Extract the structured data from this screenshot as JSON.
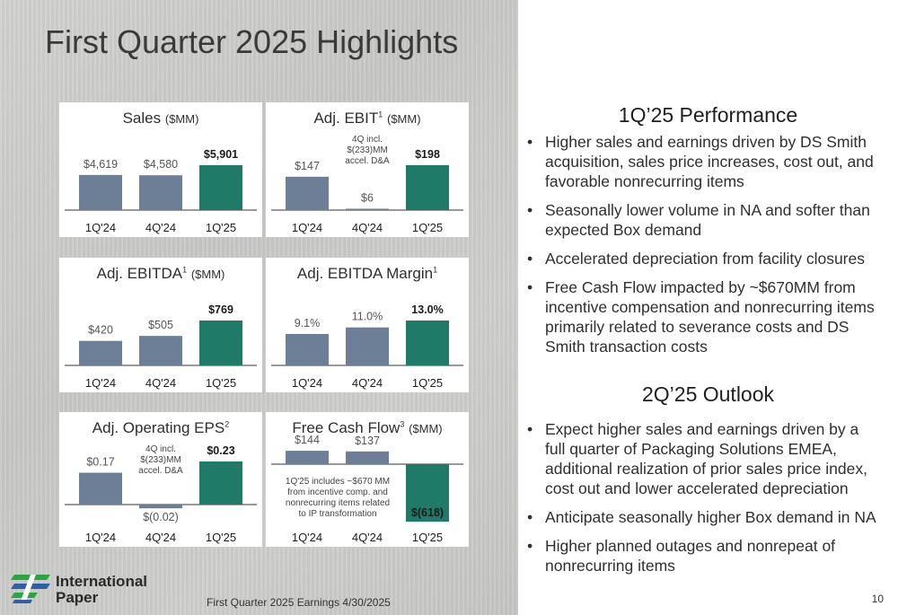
{
  "page": {
    "title": "First Quarter 2025 Highlights",
    "footer": "First Quarter 2025 Earnings 4/30/2025",
    "page_number": "10",
    "logo": {
      "line1": "International",
      "line2": "Paper",
      "icon": "international-paper-logo-icon"
    }
  },
  "colors": {
    "gray_bar": "#6c7f96",
    "teal_bar": "#1f7b67",
    "logo_green": "#2aa63e",
    "logo_blue": "#2f5fa8"
  },
  "panels": [
    {
      "title": "Sales",
      "sup": "",
      "unit": "($MM)"
    },
    {
      "title": "Adj. EBIT",
      "sup": "1",
      "unit": "($MM)"
    },
    {
      "title": "Adj. EBITDA",
      "sup": "1",
      "unit": "($MM)"
    },
    {
      "title": "Adj. EBITDA Margin",
      "sup": "1",
      "unit": ""
    },
    {
      "title": "Adj. Operating EPS",
      "sup": "2",
      "unit": ""
    },
    {
      "title": "Free Cash Flow",
      "sup": "3",
      "unit": "($MM)"
    }
  ],
  "chart_data": [
    {
      "type": "bar",
      "title": "Sales ($MM)",
      "categories": [
        "1Q'24",
        "4Q'24",
        "1Q'25"
      ],
      "values": [
        4619,
        4580,
        5901
      ],
      "labels": [
        "$4,619",
        "$4,580",
        "$5,901"
      ],
      "ylim": [
        0,
        5901
      ]
    },
    {
      "type": "bar",
      "title": "Adj. EBIT1 ($MM)",
      "categories": [
        "1Q'24",
        "4Q'24",
        "1Q'25"
      ],
      "values": [
        147,
        6,
        198
      ],
      "labels": [
        "$147",
        "$6",
        "$198"
      ],
      "ylim": [
        0,
        198
      ],
      "annotation": [
        "4Q incl.",
        "$(233)MM",
        "accel. D&A"
      ]
    },
    {
      "type": "bar",
      "title": "Adj. EBITDA1 ($MM)",
      "categories": [
        "1Q'24",
        "4Q'24",
        "1Q'25"
      ],
      "values": [
        420,
        505,
        769
      ],
      "labels": [
        "$420",
        "$505",
        "$769"
      ],
      "ylim": [
        0,
        769
      ]
    },
    {
      "type": "bar",
      "title": "Adj. EBITDA Margin1",
      "categories": [
        "1Q'24",
        "4Q'24",
        "1Q'25"
      ],
      "values": [
        9.1,
        11.0,
        13.0
      ],
      "labels": [
        "9.1%",
        "11.0%",
        "13.0%"
      ],
      "ylim": [
        0,
        13.0
      ]
    },
    {
      "type": "bar",
      "title": "Adj. Operating EPS2",
      "categories": [
        "1Q'24",
        "4Q'24",
        "1Q'25"
      ],
      "values": [
        0.17,
        -0.02,
        0.23
      ],
      "labels": [
        "$0.17",
        "$(0.02)",
        "$0.23"
      ],
      "ylim": [
        -0.02,
        0.23
      ],
      "annotation": [
        "4Q incl.",
        "$(233)MM",
        "accel. D&A"
      ]
    },
    {
      "type": "bar",
      "title": "Free Cash Flow3 ($MM)",
      "categories": [
        "1Q'24",
        "4Q'24",
        "1Q'25"
      ],
      "values": [
        144,
        137,
        -618
      ],
      "labels": [
        "$144",
        "$137",
        "$(618)"
      ],
      "ylim": [
        -618,
        144
      ],
      "annotation": [
        "1Q'25 includes ~$670 MM",
        "from incentive comp. and",
        "nonrecurring items related",
        "to IP transformation"
      ]
    }
  ],
  "performance": {
    "heading": "1Q’25 Performance",
    "bullets": [
      "Higher sales and earnings driven by DS Smith acquisition, sales price increases, cost out, and favorable nonrecurring items",
      "Seasonally lower volume in NA and softer than expected Box demand",
      "Accelerated depreciation from facility closures",
      "Free Cash Flow impacted by ~$670MM from incentive compensation and nonrecurring items primarily related to severance costs and DS Smith transaction costs"
    ]
  },
  "outlook": {
    "heading": "2Q’25 Outlook",
    "bullets": [
      "Expect higher sales and earnings driven by a full quarter of Packaging Solutions EMEA, additional realization of prior sales price index, cost out and lower accelerated depreciation",
      "Anticipate seasonally higher Box demand in NA",
      "Higher planned outages and nonrepeat of nonrecurring items"
    ]
  }
}
